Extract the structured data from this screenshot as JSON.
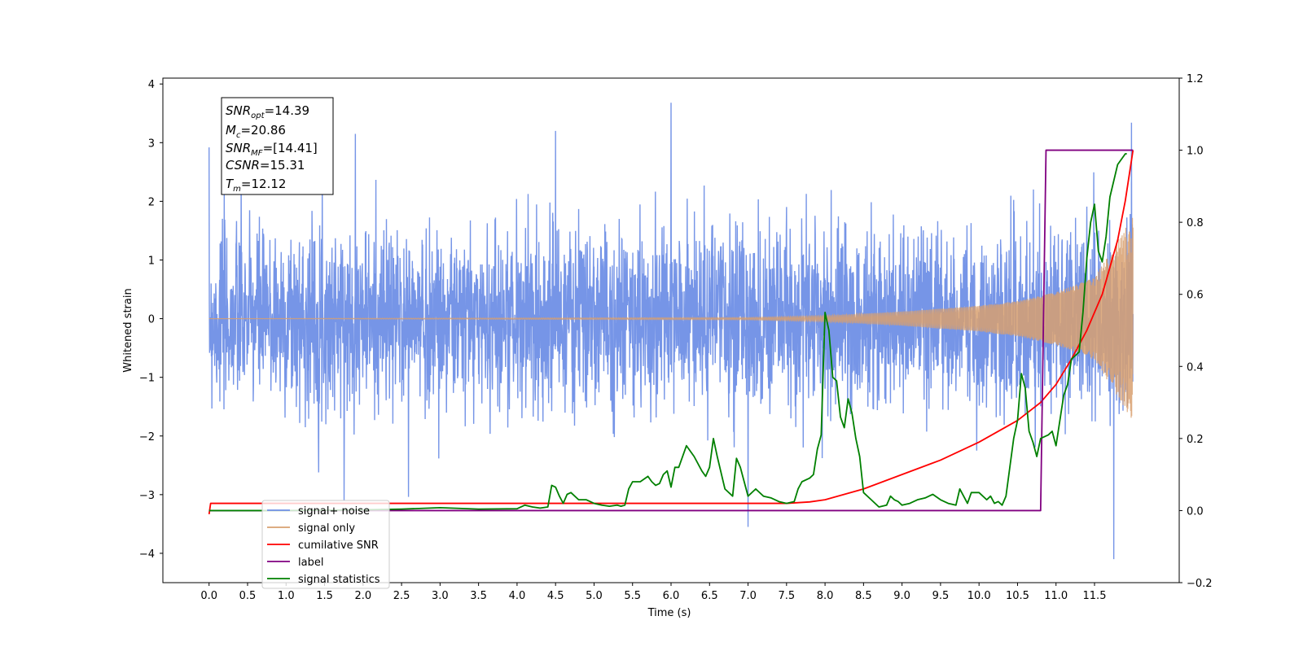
{
  "chart_data": {
    "type": "line",
    "title": "",
    "xlabel": "Time (s)",
    "ylabel": "Whitened strain",
    "xlim": [
      -0.6,
      12.6
    ],
    "ylim": [
      -4.5,
      4.1
    ],
    "y2lim": [
      -0.2,
      1.2
    ],
    "xticks": [
      0.0,
      0.5,
      1.0,
      1.5,
      2.0,
      2.5,
      3.0,
      3.5,
      4.0,
      4.5,
      5.0,
      5.5,
      6.0,
      6.5,
      7.0,
      7.5,
      8.0,
      8.5,
      9.0,
      9.5,
      10.0,
      10.5,
      11.0,
      11.5
    ],
    "xtick_labels": [
      "0.0",
      "0.5",
      "1.0",
      "1.5",
      "2.0",
      "2.5",
      "3.0",
      "3.5",
      "4.0",
      "4.5",
      "5.0",
      "5.5",
      "6.0",
      "6.5",
      "7.0",
      "7.5",
      "8.0",
      "8.5",
      "9.0",
      "9.5",
      "10.0",
      "10.5",
      "11.0",
      "11.5"
    ],
    "yticks": [
      4,
      3,
      2,
      1,
      0,
      -1,
      -2,
      -3,
      -4
    ],
    "ytick_labels": [
      "4",
      "3",
      "2",
      "1",
      "0",
      "−1",
      "−2",
      "−3",
      "−4"
    ],
    "y2ticks": [
      1.2,
      1.0,
      0.8,
      0.6,
      0.4,
      0.2,
      0.0,
      -0.2
    ],
    "y2tick_labels": [
      "1.2",
      "1.0",
      "0.8",
      "0.6",
      "0.4",
      "0.2",
      "0.0",
      "−0.2"
    ],
    "grid": false,
    "legend_position": "lower-left",
    "annotation": {
      "lines": [
        {
          "sym": "SNR",
          "sub": "opt",
          "value": "=14.39"
        },
        {
          "sym": "M",
          "sub": "c",
          "value": "=20.86"
        },
        {
          "sym": "SNR",
          "sub": "MF",
          "value": "=[14.41]"
        },
        {
          "sym": "CSNR",
          "sub": "",
          "value": "=15.31"
        },
        {
          "sym": "T",
          "sub": "m",
          "value": "=12.12"
        }
      ]
    },
    "series": [
      {
        "name": "signal+ noise",
        "axis": "left",
        "color": "#6f8fe6",
        "kind": "noise",
        "x_range": [
          0.0,
          12.0
        ],
        "approx_envelope": {
          "typical_abs": 1.6,
          "max": 3.68,
          "min": -4.1
        },
        "notable_peaks": [
          [
            1.9,
            3.15
          ],
          [
            4.5,
            3.2
          ],
          [
            6.0,
            3.68
          ],
          [
            7.0,
            -3.55
          ],
          [
            11.75,
            -4.1
          ],
          [
            11.98,
            3.34
          ]
        ]
      },
      {
        "name": "signal only",
        "axis": "left",
        "color": "#d8a070",
        "kind": "chirp",
        "x_range": [
          0.0,
          12.0
        ],
        "amplitude_at": [
          [
            0.0,
            0.0
          ],
          [
            7.0,
            0.02
          ],
          [
            8.0,
            0.05
          ],
          [
            9.0,
            0.12
          ],
          [
            10.0,
            0.22
          ],
          [
            10.5,
            0.3
          ],
          [
            11.0,
            0.45
          ],
          [
            11.5,
            0.7
          ],
          [
            12.0,
            1.75
          ]
        ]
      },
      {
        "name": "cumilative SNR",
        "axis": "right",
        "color": "#ff0000",
        "x": [
          0.0,
          0.02,
          7.5,
          7.8,
          8.0,
          8.5,
          9.0,
          9.5,
          10.0,
          10.5,
          10.8,
          11.0,
          11.2,
          11.4,
          11.6,
          11.8,
          11.9,
          12.0
        ],
        "y": [
          -0.01,
          0.02,
          0.02,
          0.024,
          0.03,
          0.06,
          0.1,
          0.14,
          0.19,
          0.25,
          0.3,
          0.35,
          0.42,
          0.5,
          0.6,
          0.75,
          0.86,
          1.0
        ]
      },
      {
        "name": "label",
        "axis": "right",
        "color": "#800080",
        "x": [
          0.0,
          10.8,
          10.87,
          12.0
        ],
        "y": [
          0.0,
          0.0,
          1.0,
          1.0
        ]
      },
      {
        "name": "signal statistics",
        "axis": "right",
        "color": "#008000",
        "x": [
          0.0,
          1.0,
          2.0,
          2.5,
          3.0,
          3.5,
          4.0,
          4.1,
          4.2,
          4.3,
          4.4,
          4.45,
          4.5,
          4.55,
          4.6,
          4.65,
          4.7,
          4.8,
          4.9,
          5.0,
          5.1,
          5.2,
          5.3,
          5.35,
          5.4,
          5.45,
          5.5,
          5.6,
          5.7,
          5.75,
          5.8,
          5.85,
          5.9,
          5.95,
          6.0,
          6.05,
          6.1,
          6.2,
          6.3,
          6.4,
          6.45,
          6.5,
          6.55,
          6.6,
          6.7,
          6.8,
          6.85,
          6.9,
          6.95,
          7.0,
          7.1,
          7.2,
          7.3,
          7.4,
          7.5,
          7.6,
          7.65,
          7.7,
          7.8,
          7.85,
          7.9,
          7.95,
          8.0,
          8.05,
          8.1,
          8.15,
          8.2,
          8.25,
          8.3,
          8.35,
          8.4,
          8.45,
          8.5,
          8.6,
          8.7,
          8.8,
          8.85,
          8.9,
          8.95,
          9.0,
          9.1,
          9.2,
          9.3,
          9.4,
          9.5,
          9.6,
          9.7,
          9.75,
          9.8,
          9.85,
          9.9,
          10.0,
          10.1,
          10.15,
          10.2,
          10.25,
          10.3,
          10.35,
          10.4,
          10.45,
          10.5,
          10.55,
          10.6,
          10.65,
          10.7,
          10.75,
          10.8,
          10.9,
          10.95,
          11.0,
          11.1,
          11.15,
          11.2,
          11.25,
          11.3,
          11.35,
          11.4,
          11.45,
          11.5,
          11.55,
          11.6,
          11.65,
          11.7,
          11.8,
          11.9,
          11.92
        ],
        "y": [
          0.0,
          0.0,
          0.002,
          0.004,
          0.008,
          0.004,
          0.005,
          0.015,
          0.01,
          0.007,
          0.01,
          0.07,
          0.065,
          0.04,
          0.02,
          0.045,
          0.05,
          0.03,
          0.03,
          0.02,
          0.015,
          0.012,
          0.015,
          0.012,
          0.015,
          0.06,
          0.08,
          0.08,
          0.095,
          0.08,
          0.07,
          0.075,
          0.1,
          0.11,
          0.065,
          0.12,
          0.12,
          0.18,
          0.15,
          0.11,
          0.095,
          0.12,
          0.2,
          0.15,
          0.06,
          0.04,
          0.145,
          0.12,
          0.08,
          0.04,
          0.06,
          0.04,
          0.035,
          0.025,
          0.02,
          0.025,
          0.06,
          0.08,
          0.09,
          0.1,
          0.17,
          0.21,
          0.55,
          0.5,
          0.37,
          0.36,
          0.26,
          0.23,
          0.31,
          0.27,
          0.2,
          0.15,
          0.05,
          0.03,
          0.01,
          0.015,
          0.04,
          0.03,
          0.025,
          0.015,
          0.02,
          0.03,
          0.035,
          0.045,
          0.03,
          0.02,
          0.015,
          0.06,
          0.04,
          0.02,
          0.05,
          0.05,
          0.03,
          0.04,
          0.02,
          0.025,
          0.015,
          0.04,
          0.12,
          0.2,
          0.25,
          0.38,
          0.34,
          0.22,
          0.19,
          0.15,
          0.2,
          0.21,
          0.22,
          0.18,
          0.32,
          0.35,
          0.42,
          0.43,
          0.44,
          0.55,
          0.7,
          0.8,
          0.85,
          0.72,
          0.69,
          0.76,
          0.87,
          0.96,
          0.99,
          0.99
        ]
      }
    ]
  }
}
